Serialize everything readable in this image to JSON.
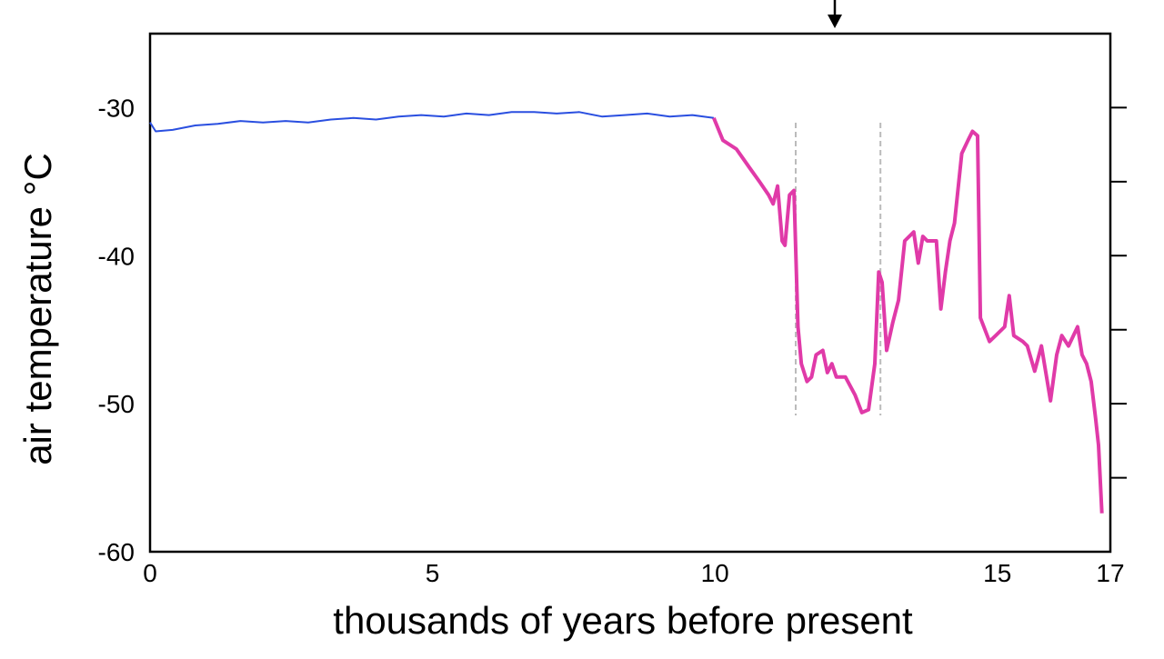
{
  "chart_data": {
    "type": "line",
    "y_label": "air temperature °C",
    "x_label": "thousands of years before present",
    "xlim": [
      0,
      17
    ],
    "xticks": [
      0,
      5,
      10,
      15,
      17
    ],
    "ylim": [
      -60,
      -25
    ],
    "yticks": [
      -30,
      -40,
      -50,
      -60
    ],
    "right_ticks": [
      -30,
      -35,
      -40,
      -45,
      -50,
      -55
    ],
    "reference_lines": [
      11.43,
      12.93
    ],
    "series": [
      {
        "color": "#2a4fe0",
        "x": [
          0,
          0.1,
          0.4,
          0.8,
          1.2,
          1.6,
          2.0,
          2.4,
          2.8,
          3.2,
          3.6,
          4.0,
          4.4,
          4.8,
          5.2,
          5.6,
          6.0,
          6.4,
          6.8,
          7.2,
          7.6,
          8.0,
          8.4,
          8.8,
          9.2,
          9.6,
          9.98
        ],
        "values": [
          -31.0,
          -31.6,
          -31.5,
          -31.2,
          -31.1,
          -30.9,
          -31.0,
          -30.9,
          -31.0,
          -30.8,
          -30.7,
          -30.8,
          -30.6,
          -30.5,
          -30.6,
          -30.4,
          -30.5,
          -30.3,
          -30.3,
          -30.4,
          -30.3,
          -30.6,
          -30.5,
          -30.4,
          -30.6,
          -30.5,
          -30.7
        ]
      },
      {
        "color": "#e03aa8",
        "x": [
          9.98,
          10.14,
          10.38,
          10.62,
          10.79,
          10.95,
          11.03,
          11.11,
          11.19,
          11.24,
          11.32,
          11.4,
          11.47,
          11.53,
          11.63,
          11.71,
          11.79,
          11.91,
          11.99,
          12.07,
          12.15,
          12.31,
          12.48,
          12.6,
          12.72,
          12.83,
          12.9,
          12.96,
          13.04,
          13.15,
          13.25,
          13.36,
          13.52,
          13.6,
          13.68,
          13.76,
          13.92,
          14.0,
          14.08,
          14.16,
          14.24,
          14.37,
          14.48,
          14.56,
          14.65,
          14.7,
          14.86,
          14.97,
          15.13,
          15.21,
          15.29,
          15.45,
          15.53,
          15.66,
          15.78,
          15.94,
          16.05,
          16.14,
          16.26,
          16.42,
          16.5,
          16.58,
          16.66,
          16.74,
          16.79,
          16.85
        ],
        "values": [
          -30.7,
          -32.2,
          -32.8,
          -34.1,
          -35.0,
          -35.9,
          -36.5,
          -35.3,
          -39.0,
          -39.3,
          -35.9,
          -35.6,
          -44.8,
          -47.3,
          -48.5,
          -48.2,
          -46.7,
          -46.4,
          -47.9,
          -47.3,
          -48.2,
          -48.2,
          -49.4,
          -50.6,
          -50.4,
          -47.3,
          -41.1,
          -41.8,
          -46.4,
          -44.5,
          -43.0,
          -39.0,
          -38.4,
          -40.5,
          -38.7,
          -39.0,
          -39.0,
          -43.6,
          -41.1,
          -39.0,
          -37.8,
          -33.1,
          -32.2,
          -31.6,
          -31.9,
          -44.2,
          -45.8,
          -45.4,
          -44.8,
          -42.7,
          -45.4,
          -45.8,
          -46.1,
          -47.8,
          -46.1,
          -49.8,
          -46.7,
          -45.4,
          -46.1,
          -44.8,
          -46.7,
          -47.3,
          -48.5,
          -51.0,
          -52.8,
          -57.4
        ]
      }
    ]
  }
}
